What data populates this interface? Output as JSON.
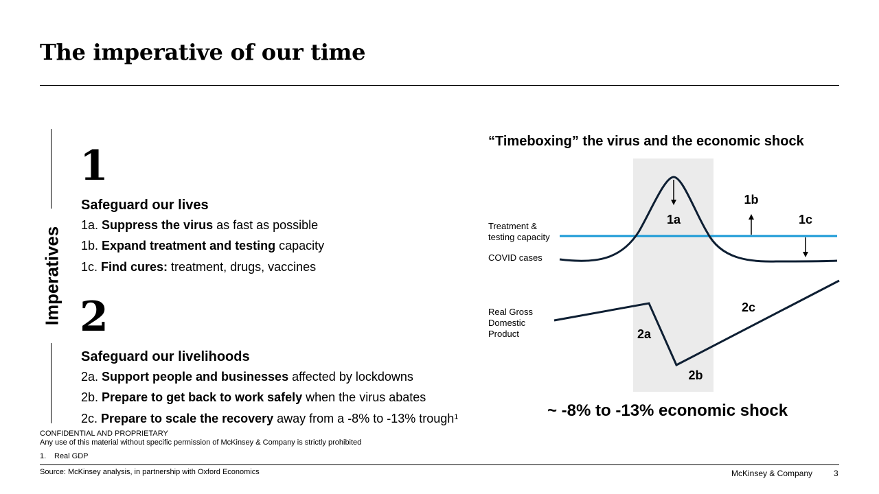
{
  "title": "The imperative of our time",
  "side_label": "Imperatives",
  "sections": [
    {
      "number": "1",
      "heading": "Safeguard our lives",
      "items": [
        {
          "prefix": "1a. ",
          "bold": "Suppress the virus",
          "rest": " as fast as possible"
        },
        {
          "prefix": "1b. ",
          "bold": "Expand treatment and testing",
          "rest": " capacity"
        },
        {
          "prefix": "1c. ",
          "bold": "Find cures:",
          "rest": " treatment, drugs, vaccines"
        }
      ]
    },
    {
      "number": "2",
      "heading": "Safeguard our livelihoods",
      "items": [
        {
          "prefix": "2a. ",
          "bold": "Support people and businesses",
          "rest": " affected by lockdowns"
        },
        {
          "prefix": "2b. ",
          "bold": "Prepare to get back to work safely",
          "rest": " when the virus abates"
        },
        {
          "prefix": "2c. ",
          "bold": "Prepare to scale the recovery",
          "rest": " away from a -8% to -13% trough",
          "sup": "1"
        }
      ]
    }
  ],
  "chart": {
    "title": "“Timeboxing” the virus and the economic shock",
    "labels": {
      "treatment_line1": "Treatment &",
      "treatment_line2": "testing capacity",
      "covid": "COVID cases",
      "gdp_line1": "Real Gross",
      "gdp_line2": "Domestic",
      "gdp_line3": "Product"
    },
    "markers": {
      "m1a": "1a",
      "m1b": "1b",
      "m1c": "1c",
      "m2a": "2a",
      "m2b": "2b",
      "m2c": "2c"
    },
    "shock": "~ -8% to -13% economic shock",
    "colors": {
      "capacity_line": "#1a9ad6",
      "curves": "#0e1f33",
      "shade": "#ebebeb"
    }
  },
  "footer": {
    "confidential": "CONFIDENTIAL AND PROPRIETARY",
    "notice": "Any use of this material without specific permission of McKinsey & Company is strictly prohibited",
    "footnote_num": "1.",
    "footnote_text": "Real GDP",
    "source": "Source: McKinsey analysis, in partnership with Oxford Economics",
    "company": "McKinsey & Company",
    "page": "3"
  }
}
